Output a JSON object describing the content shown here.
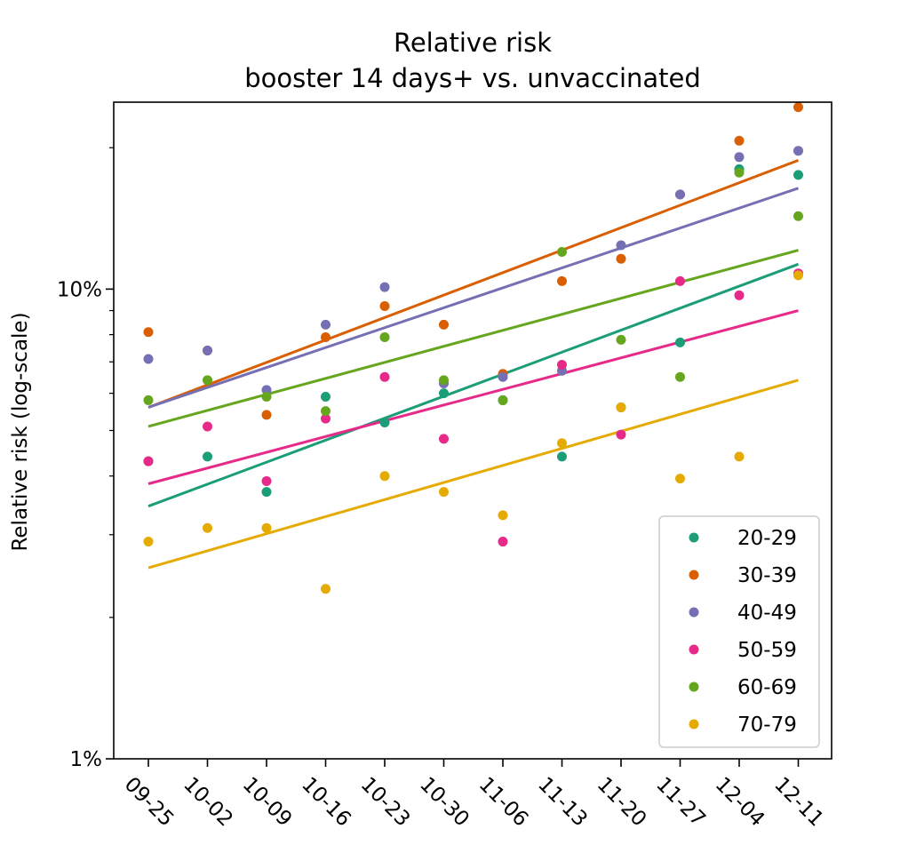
{
  "chart_data": {
    "type": "scatter",
    "title": "Relative risk",
    "subtitle": "booster 14 days+ vs. unvaccinated",
    "xlabel": "",
    "ylabel": "Relative risk (log-scale)",
    "yscale": "log",
    "ylim": [
      1,
      25
    ],
    "yticks": [
      {
        "value": 1,
        "label": "1%"
      },
      {
        "value": 10,
        "label": "10%"
      }
    ],
    "grid": false,
    "legend_position": "lower-right",
    "categories": [
      "09-25",
      "10-02",
      "10-09",
      "10-16",
      "10-23",
      "10-30",
      "11-06",
      "11-13",
      "11-20",
      "11-27",
      "12-04",
      "12-11"
    ],
    "series": [
      {
        "name": "20-29",
        "color": "#1b9e77",
        "values": [
          4.3,
          4.4,
          3.7,
          5.9,
          5.2,
          6.0,
          5.8,
          4.4,
          5.6,
          7.7,
          18.0,
          17.5
        ],
        "trend": [
          3.45,
          11.3
        ]
      },
      {
        "name": "30-39",
        "color": "#d95f02",
        "values": [
          8.1,
          7.4,
          5.4,
          7.9,
          9.2,
          8.4,
          6.6,
          10.4,
          11.6,
          15.9,
          20.7,
          24.4
        ],
        "trend": [
          5.6,
          18.8
        ]
      },
      {
        "name": "40-49",
        "color": "#7570b3",
        "values": [
          7.1,
          7.4,
          6.1,
          8.4,
          10.1,
          6.3,
          6.5,
          6.7,
          12.4,
          15.9,
          19.1,
          19.7
        ],
        "trend": [
          5.6,
          16.4
        ]
      },
      {
        "name": "50-59",
        "color": "#e7298a",
        "values": [
          4.3,
          5.1,
          3.9,
          5.3,
          6.5,
          4.8,
          2.9,
          6.9,
          4.9,
          10.4,
          9.7,
          10.8
        ],
        "trend": [
          3.85,
          9.0
        ]
      },
      {
        "name": "60-69",
        "color": "#66a61e",
        "values": [
          5.8,
          6.4,
          5.9,
          5.5,
          7.9,
          6.4,
          5.8,
          12.0,
          7.8,
          6.5,
          17.7,
          14.3
        ],
        "trend": [
          5.1,
          12.1
        ]
      },
      {
        "name": "70-79",
        "color": "#e6ab02",
        "values": [
          2.9,
          3.1,
          3.1,
          2.3,
          4.0,
          3.7,
          3.3,
          4.7,
          5.6,
          3.95,
          4.4,
          10.7
        ],
        "trend": [
          2.55,
          6.4
        ]
      }
    ]
  }
}
